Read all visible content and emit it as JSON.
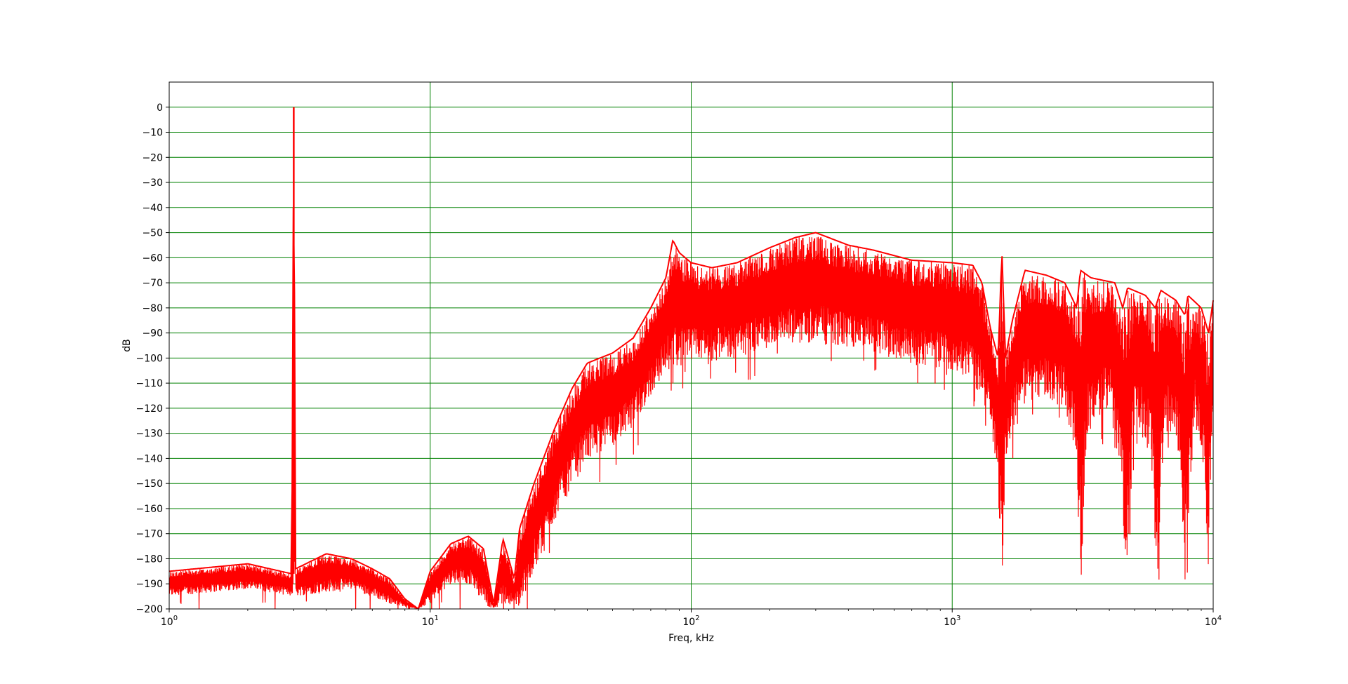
{
  "chart_data": {
    "type": "line",
    "title": "",
    "xlabel": "Freq, kHz",
    "ylabel": "dB",
    "xscale": "log",
    "xlim": [
      1,
      10000
    ],
    "ylim": [
      -200,
      10
    ],
    "grid": true,
    "grid_color": "#008000",
    "series_color": "#ff0000",
    "x_ticks": [
      {
        "value": 1,
        "base": "10",
        "exp": "0"
      },
      {
        "value": 10,
        "base": "10",
        "exp": "1"
      },
      {
        "value": 100,
        "base": "10",
        "exp": "2"
      },
      {
        "value": 1000,
        "base": "10",
        "exp": "3"
      },
      {
        "value": 10000,
        "base": "10",
        "exp": "4"
      }
    ],
    "y_ticks": [
      {
        "value": 0,
        "label": "0"
      },
      {
        "value": -10,
        "label": "−10"
      },
      {
        "value": -20,
        "label": "−20"
      },
      {
        "value": -30,
        "label": "−30"
      },
      {
        "value": -40,
        "label": "−40"
      },
      {
        "value": -50,
        "label": "−50"
      },
      {
        "value": -60,
        "label": "−60"
      },
      {
        "value": -70,
        "label": "−70"
      },
      {
        "value": -80,
        "label": "−80"
      },
      {
        "value": -90,
        "label": "−90"
      },
      {
        "value": -100,
        "label": "−100"
      },
      {
        "value": -110,
        "label": "−110"
      },
      {
        "value": -120,
        "label": "−120"
      },
      {
        "value": -130,
        "label": "−130"
      },
      {
        "value": -140,
        "label": "−140"
      },
      {
        "value": -150,
        "label": "−150"
      },
      {
        "value": -160,
        "label": "−160"
      },
      {
        "value": -170,
        "label": "−170"
      },
      {
        "value": -180,
        "label": "−180"
      },
      {
        "value": -190,
        "label": "−190"
      },
      {
        "value": -200,
        "label": "−200"
      }
    ],
    "series": [
      {
        "peaks": [
          [
            1,
            -185
          ],
          [
            2,
            -182
          ],
          [
            2.95,
            -186
          ],
          [
            3.0,
            0
          ],
          [
            3.05,
            -184
          ],
          [
            4,
            -178
          ],
          [
            5,
            -180
          ],
          [
            6,
            -184
          ],
          [
            7,
            -188
          ],
          [
            8,
            -196
          ],
          [
            9,
            -200
          ],
          [
            10,
            -185
          ],
          [
            12,
            -174
          ],
          [
            14,
            -171
          ],
          [
            16,
            -176
          ],
          [
            17.5,
            -198
          ],
          [
            19,
            -172
          ],
          [
            21,
            -188
          ],
          [
            22,
            -168
          ],
          [
            25,
            -150
          ],
          [
            30,
            -128
          ],
          [
            35,
            -112
          ],
          [
            40,
            -102
          ],
          [
            50,
            -98
          ],
          [
            60,
            -92
          ],
          [
            70,
            -80
          ],
          [
            80,
            -68
          ],
          [
            85,
            -53
          ],
          [
            90,
            -58
          ],
          [
            100,
            -62
          ],
          [
            120,
            -64
          ],
          [
            150,
            -62
          ],
          [
            200,
            -56
          ],
          [
            250,
            -52
          ],
          [
            300,
            -50
          ],
          [
            400,
            -55
          ],
          [
            500,
            -57
          ],
          [
            700,
            -61
          ],
          [
            1000,
            -62
          ],
          [
            1200,
            -63
          ],
          [
            1300,
            -70
          ],
          [
            1400,
            -88
          ],
          [
            1500,
            -100
          ],
          [
            1550,
            -57
          ],
          [
            1600,
            -100
          ],
          [
            1700,
            -85
          ],
          [
            1900,
            -65
          ],
          [
            2300,
            -67
          ],
          [
            2700,
            -70
          ],
          [
            3000,
            -80
          ],
          [
            3100,
            -65
          ],
          [
            3400,
            -68
          ],
          [
            4200,
            -70
          ],
          [
            4500,
            -80
          ],
          [
            4700,
            -72
          ],
          [
            5500,
            -75
          ],
          [
            6000,
            -80
          ],
          [
            6300,
            -73
          ],
          [
            7200,
            -77
          ],
          [
            7800,
            -83
          ],
          [
            8000,
            -75
          ],
          [
            9000,
            -80
          ],
          [
            9600,
            -90
          ],
          [
            10000,
            -77
          ]
        ],
        "floor": [
          [
            1,
            -195
          ],
          [
            2,
            -192
          ],
          [
            3,
            -195
          ],
          [
            5,
            -192
          ],
          [
            7,
            -198
          ],
          [
            9,
            -200
          ],
          [
            10,
            -198
          ],
          [
            12,
            -190
          ],
          [
            14,
            -190
          ],
          [
            17,
            -200
          ],
          [
            20,
            -198
          ],
          [
            22,
            -200
          ],
          [
            25,
            -185
          ],
          [
            30,
            -165
          ],
          [
            35,
            -150
          ],
          [
            40,
            -140
          ],
          [
            50,
            -135
          ],
          [
            60,
            -128
          ],
          [
            70,
            -115
          ],
          [
            80,
            -105
          ],
          [
            100,
            -102
          ],
          [
            150,
            -100
          ],
          [
            200,
            -96
          ],
          [
            300,
            -94
          ],
          [
            500,
            -98
          ],
          [
            700,
            -102
          ],
          [
            1000,
            -105
          ],
          [
            1200,
            -110
          ],
          [
            1400,
            -125
          ],
          [
            1500,
            -150
          ],
          [
            1550,
            -200
          ],
          [
            1600,
            -140
          ],
          [
            1800,
            -120
          ],
          [
            2200,
            -115
          ],
          [
            2700,
            -120
          ],
          [
            3000,
            -140
          ],
          [
            3100,
            -195
          ],
          [
            3300,
            -130
          ],
          [
            4000,
            -120
          ],
          [
            4500,
            -150
          ],
          [
            4600,
            -200
          ],
          [
            5000,
            -125
          ],
          [
            5800,
            -140
          ],
          [
            6100,
            -195
          ],
          [
            6500,
            -125
          ],
          [
            7500,
            -140
          ],
          [
            7800,
            -195
          ],
          [
            8500,
            -125
          ],
          [
            9300,
            -150
          ],
          [
            9500,
            -190
          ],
          [
            10000,
            -120
          ]
        ]
      }
    ]
  }
}
